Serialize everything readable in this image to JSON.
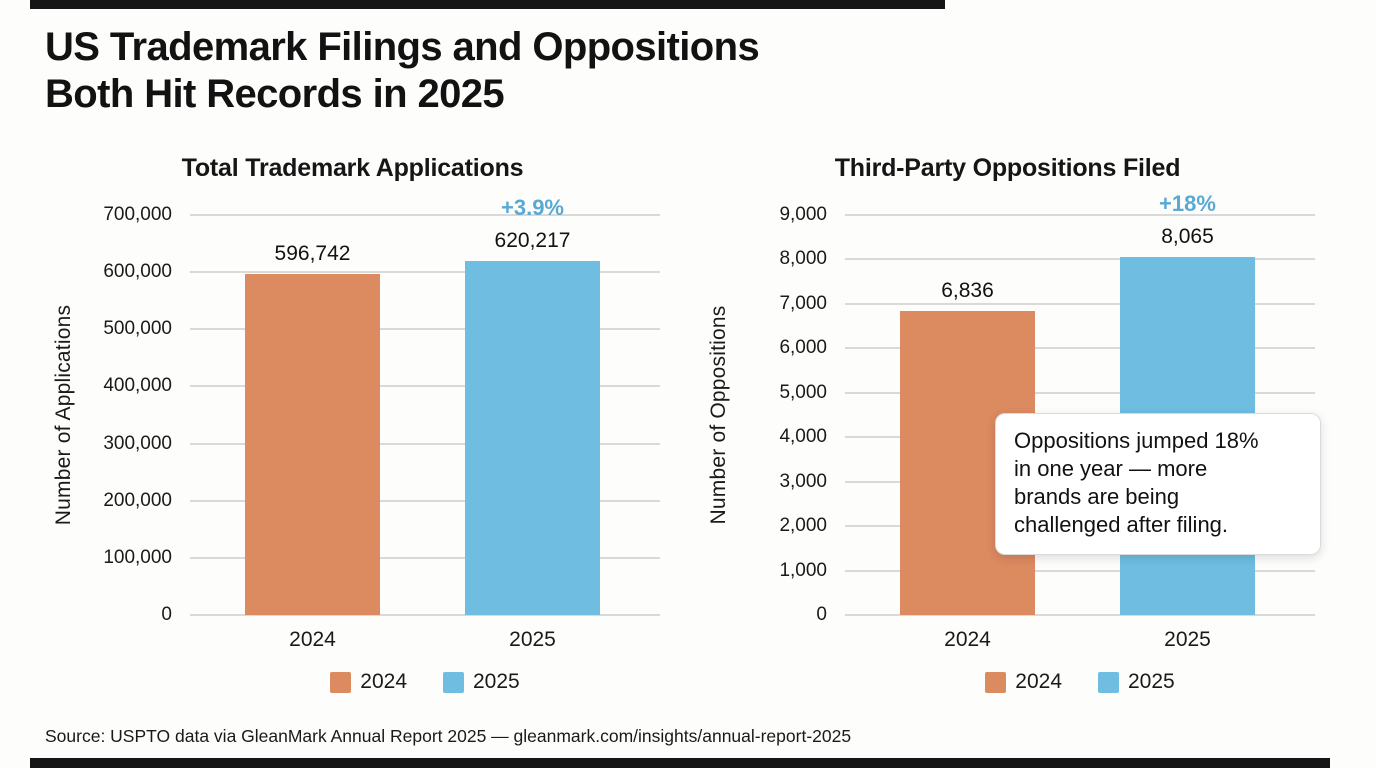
{
  "page": {
    "title": "US Trademark Filings and Oppositions\nBoth Hit Records in 2025",
    "source": "Source: USPTO data via GleanMark Annual Report 2025 — gleanmark.com/insights/annual-report-2025"
  },
  "colors": {
    "series_2024": "#DC8A60",
    "series_2025": "#6FBDE1",
    "pct_annotation": "#58A9D3",
    "gridline": "#D9D9D9",
    "text": "#1A1A1A",
    "background": "#FDFDFC"
  },
  "chart_data": [
    {
      "type": "bar",
      "title": "Total Trademark Applications",
      "xlabel": "",
      "ylabel": "Number of Applications",
      "categories": [
        "2024",
        "2025"
      ],
      "values": [
        596742,
        620217
      ],
      "value_labels": [
        "596,742",
        "620,217"
      ],
      "pct_change_label": "+3.9%",
      "pct_change_on": "2025",
      "ylim": [
        0,
        700000
      ],
      "yticks": [
        "0",
        "100,000",
        "200,000",
        "300,000",
        "400,000",
        "500,000",
        "600,000",
        "700,000"
      ],
      "grid": true,
      "legend": [
        "2024",
        "2025"
      ],
      "legend_position": "bottom"
    },
    {
      "type": "bar",
      "title": "Third-Party Oppositions Filed",
      "xlabel": "",
      "ylabel": "Number of Oppositions",
      "categories": [
        "2024",
        "2025"
      ],
      "values": [
        6836,
        8065
      ],
      "value_labels": [
        "6,836",
        "8,065"
      ],
      "pct_change_label": "+18%",
      "pct_change_on": "2025",
      "ylim": [
        0,
        9000
      ],
      "yticks": [
        "0",
        "1,000",
        "2,000",
        "3,000",
        "4,000",
        "5,000",
        "6,000",
        "7,000",
        "8,000",
        "9,000"
      ],
      "grid": true,
      "legend": [
        "2024",
        "2025"
      ],
      "legend_position": "bottom",
      "annotation": "Oppositions jumped 18%\nin one year — more\nbrands are being\nchallenged after filing."
    }
  ]
}
